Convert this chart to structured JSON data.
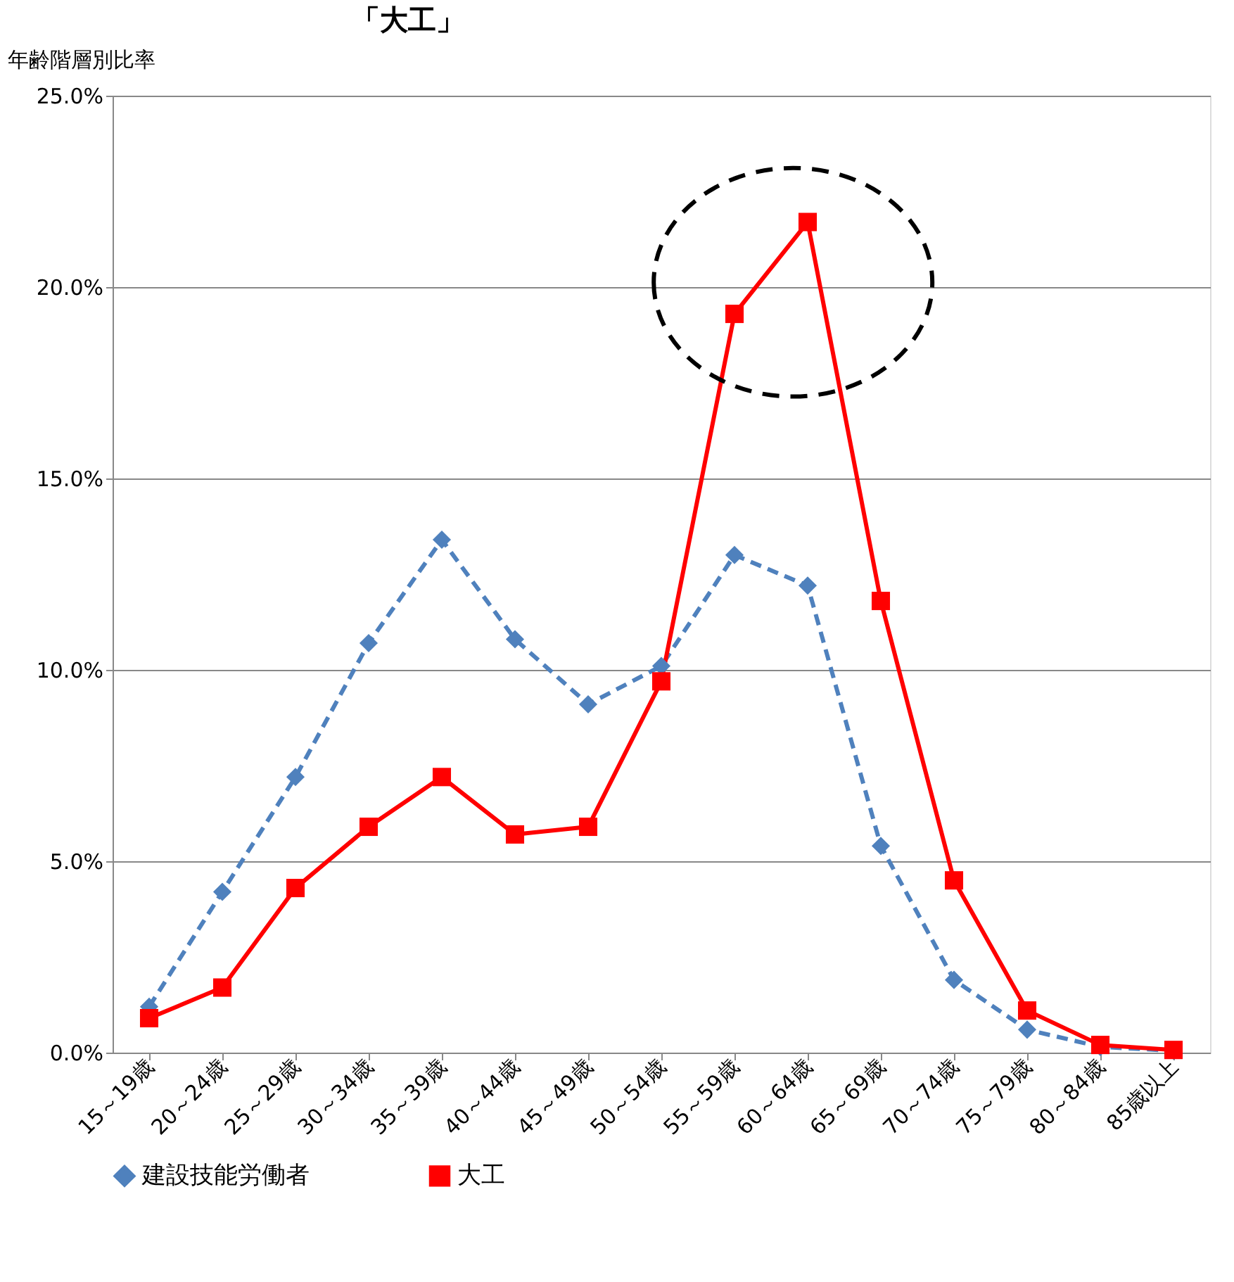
{
  "chart_data": {
    "type": "line",
    "title": "「大工」",
    "ylabel": "年齢階層別比率",
    "categories": [
      "15～19歳",
      "20～24歳",
      "25～29歳",
      "30～34歳",
      "35～39歳",
      "40～44歳",
      "45～49歳",
      "50～54歳",
      "55～59歳",
      "60～64歳",
      "65～69歳",
      "70～74歳",
      "75～79歳",
      "80～84歳",
      "85歳以上"
    ],
    "series": [
      {
        "name": "建設技能労働者",
        "color": "#4f81bd",
        "marker": "diamond",
        "line_style": "dashed",
        "values": [
          1.2,
          4.2,
          7.2,
          10.7,
          13.4,
          10.8,
          9.1,
          10.1,
          13.0,
          12.2,
          5.4,
          1.9,
          0.6,
          0.15,
          0.05
        ]
      },
      {
        "name": "大工",
        "color": "#ff0000",
        "marker": "square",
        "line_style": "solid",
        "values": [
          0.9,
          1.7,
          4.3,
          5.9,
          7.2,
          5.7,
          5.9,
          9.7,
          19.3,
          21.7,
          11.8,
          4.5,
          1.1,
          0.2,
          0.07
        ]
      }
    ],
    "ylim": [
      0,
      25
    ],
    "yticks": [
      {
        "value": 0,
        "label": "0.0%"
      },
      {
        "value": 5,
        "label": "5.0%"
      },
      {
        "value": 10,
        "label": "10.0%"
      },
      {
        "value": 15,
        "label": "15.0%"
      },
      {
        "value": 20,
        "label": "20.0%"
      },
      {
        "value": 25,
        "label": "25.0%"
      }
    ],
    "grid": "y",
    "legend": "bottom"
  }
}
